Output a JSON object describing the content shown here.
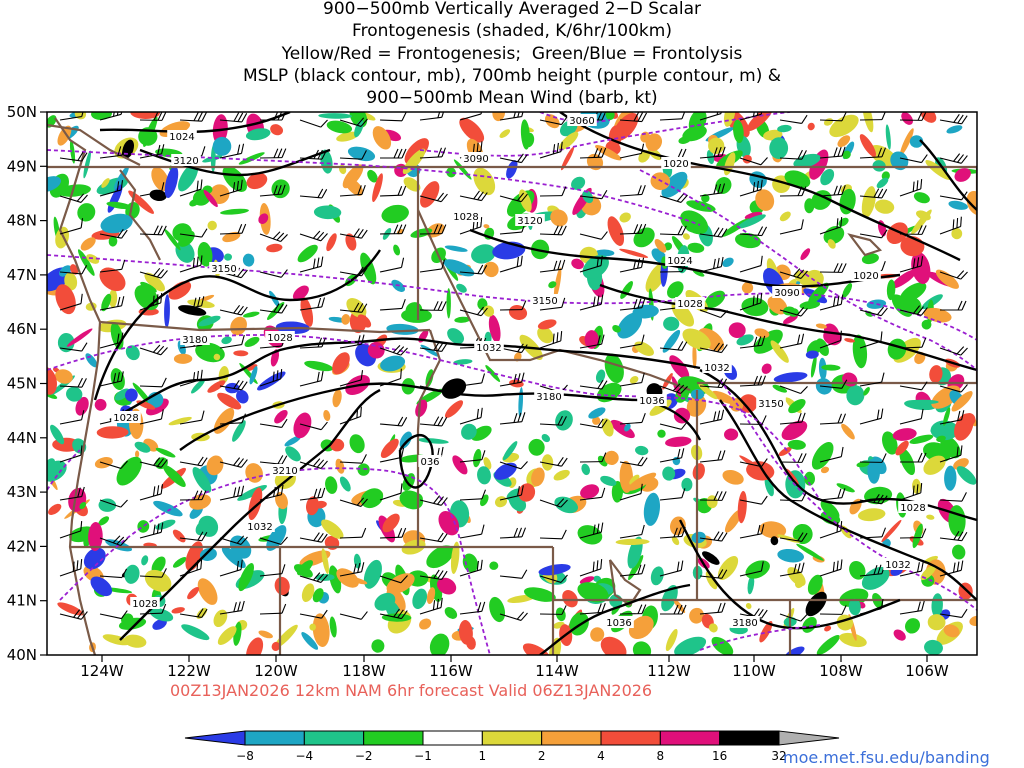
{
  "title_lines": [
    "900−500mb Vertically Averaged 2−D Scalar",
    "Frontogenesis (shaded, K/6hr/100km)",
    "Yellow/Red = Frontogenesis;  Green/Blue = Frontolysis",
    "MSLP (black contour, mb), 700mb height (purple contour, m) &",
    "900−500mb Mean Wind (barb, kt)"
  ],
  "lat_labels": [
    "50N",
    "49N",
    "48N",
    "47N",
    "46N",
    "45N",
    "44N",
    "43N",
    "42N",
    "41N",
    "40N"
  ],
  "lon_labels": [
    "124W",
    "122W",
    "120W",
    "118W",
    "116W",
    "114W",
    "112W",
    "110W",
    "108W",
    "106W"
  ],
  "contour_labels": [
    {
      "text": "1024",
      "kind": "mslp"
    },
    {
      "text": "3120",
      "kind": "hgt"
    },
    {
      "text": "3090",
      "kind": "hgt"
    },
    {
      "text": "3060",
      "kind": "hgt"
    },
    {
      "text": "1020",
      "kind": "mslp"
    },
    {
      "text": "1028",
      "kind": "mslp"
    },
    {
      "text": "3120",
      "kind": "hgt"
    },
    {
      "text": "1024",
      "kind": "mslp"
    },
    {
      "text": "1020",
      "kind": "mslp"
    },
    {
      "text": "3150",
      "kind": "hgt"
    },
    {
      "text": "3150",
      "kind": "hgt"
    },
    {
      "text": "3090",
      "kind": "hgt"
    },
    {
      "text": "1028",
      "kind": "mslp"
    },
    {
      "text": "3180",
      "kind": "hgt"
    },
    {
      "text": "1028",
      "kind": "mslp"
    },
    {
      "text": "1032",
      "kind": "mslp"
    },
    {
      "text": "1032",
      "kind": "mslp"
    },
    {
      "text": "3180",
      "kind": "hgt"
    },
    {
      "text": "1036",
      "kind": "mslp"
    },
    {
      "text": "3150",
      "kind": "hgt"
    },
    {
      "text": "1028",
      "kind": "mslp"
    },
    {
      "text": "036",
      "kind": "mslp"
    },
    {
      "text": "3210",
      "kind": "hgt"
    },
    {
      "text": "1032",
      "kind": "mslp"
    },
    {
      "text": "1028",
      "kind": "mslp"
    },
    {
      "text": "1032",
      "kind": "mslp"
    },
    {
      "text": "1028",
      "kind": "mslp"
    },
    {
      "text": "1036",
      "kind": "mslp"
    },
    {
      "text": "3180",
      "kind": "hgt"
    }
  ],
  "footer": "00Z13JAN2026 12km NAM 6hr forecast Valid 06Z13JAN2026",
  "credit": "moe.met.fsu.edu/banding",
  "colorbar": {
    "labels": [
      "−8",
      "−4",
      "−2",
      "−1",
      "1",
      "2",
      "4",
      "8",
      "16",
      "32"
    ],
    "colors": [
      "#2a3be6",
      "#1ea6c4",
      "#1fc48a",
      "#22cc22",
      "#ffffff",
      "#dcd83a",
      "#f5a03a",
      "#f24d3a",
      "#e0107a",
      "#000000",
      "#b0b0b0"
    ]
  },
  "colors": {
    "mslp": "#000000",
    "height": "#9a1fd1",
    "borders": "#7a5a48",
    "footer": "#e8615a",
    "credit": "#3b6fd9"
  },
  "shading_palette": [
    "#2a3be6",
    "#1ea6c4",
    "#1fc48a",
    "#22cc22",
    "#dcd83a",
    "#f5a03a",
    "#f24d3a",
    "#e0107a",
    "#000000"
  ]
}
